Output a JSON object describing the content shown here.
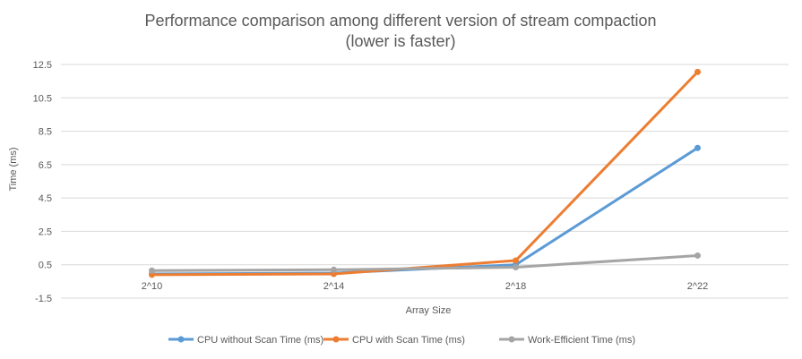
{
  "chart_data": {
    "type": "line",
    "title": "Performance comparison among different version of stream compaction",
    "subtitle": "(lower is faster)",
    "xlabel": "Array Size",
    "ylabel": "Time (ms)",
    "categories": [
      "2^10",
      "2^14",
      "2^18",
      "2^22"
    ],
    "y_ticks": [
      "12.5",
      "10.5",
      "8.5",
      "6.5",
      "4.5",
      "2.5",
      "0.5",
      "-1.5"
    ],
    "ylim": [
      -1.5,
      12.5
    ],
    "grid": true,
    "legend_position": "bottom",
    "series": [
      {
        "name": "CPU without Scan Time (ms)",
        "values": [
          -0.05,
          0.0,
          0.5,
          7.5
        ],
        "color": "#5b9bd5"
      },
      {
        "name": "CPU with Scan Time (ms)",
        "values": [
          -0.1,
          -0.05,
          0.75,
          12.05
        ],
        "color": "#ed7d31"
      },
      {
        "name": "Work-Efficient Time (ms)",
        "values": [
          0.15,
          0.2,
          0.35,
          1.05
        ],
        "color": "#a5a5a5"
      }
    ]
  }
}
